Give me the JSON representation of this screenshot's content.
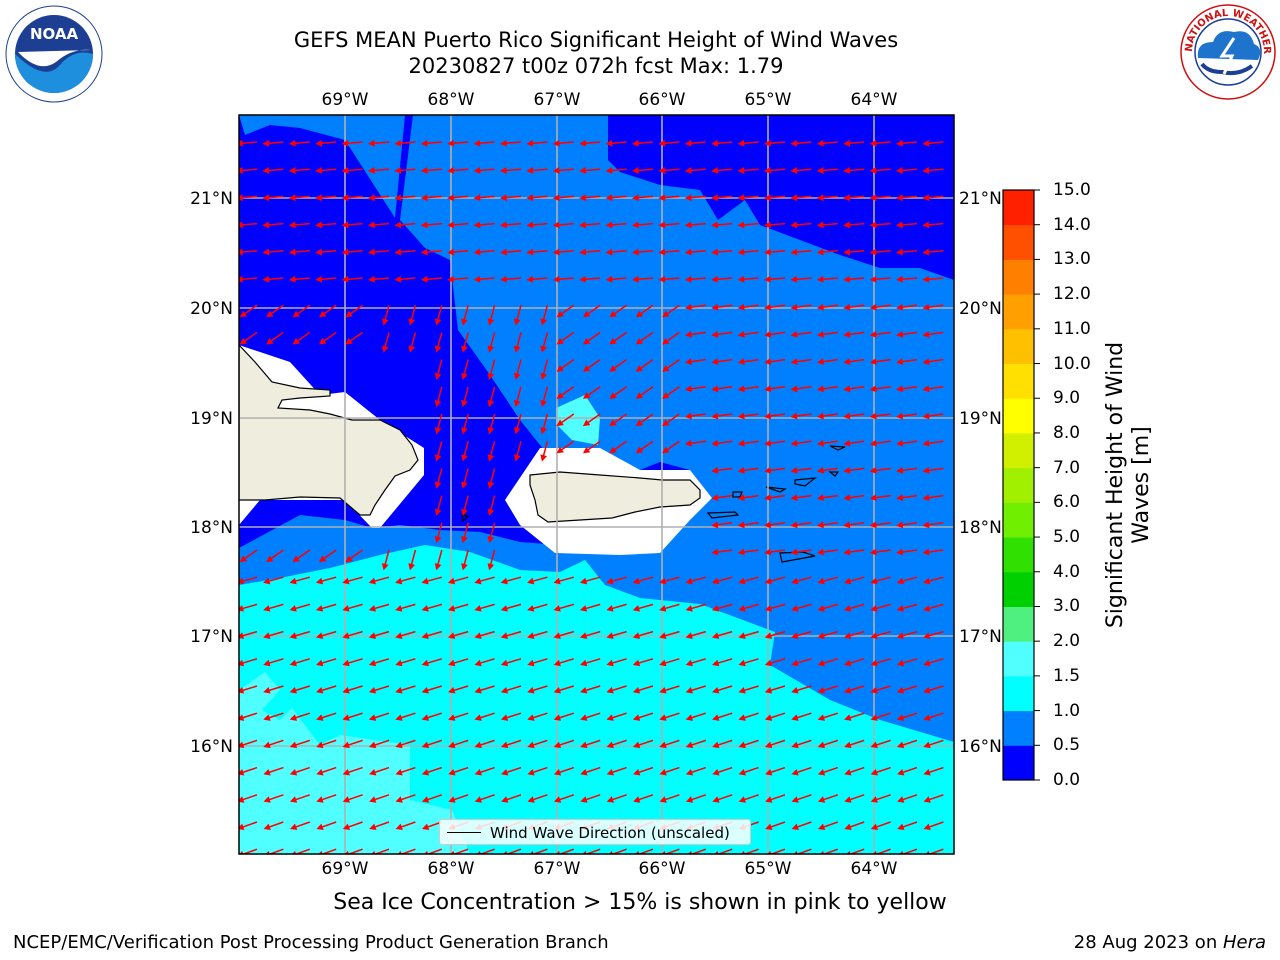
{
  "header": {
    "title_line1": "GEFS MEAN Puerto Rico Significant Height of Wind Waves",
    "title_line2": "20230827 t00z 072h fcst   Max: 1.79"
  },
  "map": {
    "lon_ticks": [
      "69°W",
      "68°W",
      "67°W",
      "66°W",
      "65°W",
      "64°W"
    ],
    "lat_ticks": [
      "21°N",
      "20°N",
      "19°N",
      "18°N",
      "17°N",
      "16°N"
    ],
    "colors": {
      "ocean_0_0p5": "#0000ff",
      "ocean_0p5_1": "#0080ff",
      "ocean_1_1p5": "#00ffff",
      "ocean_1p5_2": "#50ffff",
      "land": "#efedde",
      "arrow": "#ff0000",
      "grid": "#b0b0b0"
    }
  },
  "colorbar": {
    "label": "Significant Height of Wind Waves [m]",
    "ticks": [
      "15.0",
      "14.0",
      "13.0",
      "12.0",
      "11.0",
      "10.0",
      "9.0",
      "8.0",
      "7.0",
      "6.0",
      "5.0",
      "4.0",
      "3.0",
      "2.0",
      "1.5",
      "1.0",
      "0.5",
      "0.0"
    ],
    "colors": [
      "#0000ff",
      "#0080ff",
      "#00ffff",
      "#50ffff",
      "#a0ffff",
      "#50f080",
      "#00d000",
      "#30e000",
      "#70f000",
      "#a0f000",
      "#d0f000",
      "#ffff00",
      "#ffe000",
      "#ffc000",
      "#ffa000",
      "#ff7f00",
      "#ff5000",
      "#ff2000",
      "#ff0000"
    ]
  },
  "legend": {
    "label": "Wind Wave Direction (unscaled)"
  },
  "note": "Sea Ice Concentration > 15% is shown in pink to yellow",
  "footer": {
    "left": "NCEP/EMC/Verification Post Processing Product Generation Branch",
    "right_date": "28 Aug 2023 on ",
    "right_host": "Hera"
  },
  "logos": {
    "noaa_text": "NOAA",
    "nws_text": "NATIONAL WEATHER SERVICE"
  }
}
